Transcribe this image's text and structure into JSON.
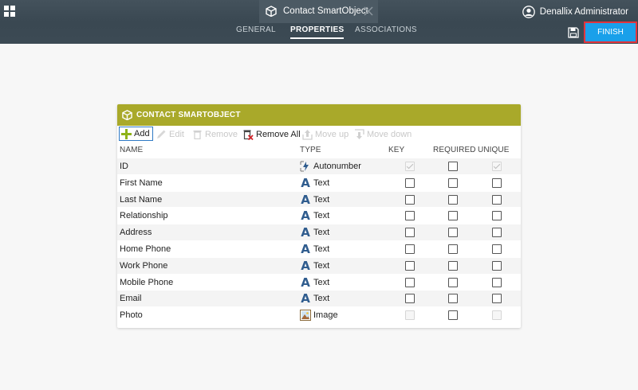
{
  "header": {
    "document_tab": {
      "title": "Contact SmartObject",
      "icon": "cube-icon"
    },
    "user": {
      "name": "Denallix Administrator",
      "icon": "user-avatar-icon"
    },
    "nav_tabs": [
      {
        "label": "GENERAL",
        "active": false
      },
      {
        "label": "PROPERTIES",
        "active": true
      },
      {
        "label": "ASSOCIATIONS",
        "active": false
      }
    ],
    "finish_label": "FINISH",
    "colors": {
      "bar": "#3c4a54",
      "finish": "#19a0ea",
      "finish_border": "#e3343c"
    }
  },
  "panel": {
    "title": "CONTACT SMARTOBJECT",
    "header_color": "#a9a92a",
    "toolbar": {
      "add": "Add",
      "edit": "Edit",
      "remove": "Remove",
      "remove_all": "Remove All",
      "move_up": "Move up",
      "move_down": "Move down"
    },
    "columns": {
      "name": "NAME",
      "type": "TYPE",
      "key": "KEY",
      "required": "REQUIRED",
      "unique": "UNIQUE"
    },
    "rows": [
      {
        "name": "ID",
        "type": "Autonumber",
        "type_icon": "autonumber-icon",
        "key": "checked-disabled",
        "required": "unchecked",
        "unique": "checked-disabled"
      },
      {
        "name": "First Name",
        "type": "Text",
        "type_icon": "text-icon",
        "key": "unchecked",
        "required": "unchecked",
        "unique": "unchecked"
      },
      {
        "name": "Last Name",
        "type": "Text",
        "type_icon": "text-icon",
        "key": "unchecked",
        "required": "unchecked",
        "unique": "unchecked"
      },
      {
        "name": "Relationship",
        "type": "Text",
        "type_icon": "text-icon",
        "key": "unchecked",
        "required": "unchecked",
        "unique": "unchecked"
      },
      {
        "name": "Address",
        "type": "Text",
        "type_icon": "text-icon",
        "key": "unchecked",
        "required": "unchecked",
        "unique": "unchecked"
      },
      {
        "name": "Home Phone",
        "type": "Text",
        "type_icon": "text-icon",
        "key": "unchecked",
        "required": "unchecked",
        "unique": "unchecked"
      },
      {
        "name": "Work Phone",
        "type": "Text",
        "type_icon": "text-icon",
        "key": "unchecked",
        "required": "unchecked",
        "unique": "unchecked"
      },
      {
        "name": "Mobile Phone",
        "type": "Text",
        "type_icon": "text-icon",
        "key": "unchecked",
        "required": "unchecked",
        "unique": "unchecked"
      },
      {
        "name": "Email",
        "type": "Text",
        "type_icon": "text-icon",
        "key": "unchecked",
        "required": "unchecked",
        "unique": "unchecked"
      },
      {
        "name": "Photo",
        "type": "Image",
        "type_icon": "image-icon",
        "key": "disabled",
        "required": "unchecked",
        "unique": "disabled"
      }
    ]
  }
}
